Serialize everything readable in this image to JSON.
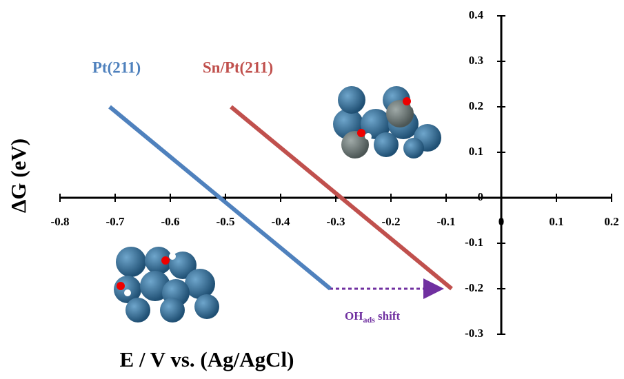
{
  "chart_data": {
    "type": "line",
    "xlabel": "E / V vs. (Ag/AgCl)",
    "ylabel": "ΔG (eV)",
    "xlim": [
      -0.8,
      0.2
    ],
    "ylim": [
      -0.3,
      0.4
    ],
    "xticks": [
      -0.8,
      -0.7,
      -0.6,
      -0.5,
      -0.4,
      -0.3,
      -0.2,
      -0.1,
      0,
      0.1,
      0.2
    ],
    "yticks": [
      -0.3,
      -0.2,
      -0.1,
      0,
      0.1,
      0.2,
      0.3,
      0.4
    ],
    "series": [
      {
        "name": "Pt(211)",
        "color": "#4f81bd",
        "x": [
          -0.71,
          -0.31
        ],
        "values": [
          0.2,
          -0.2
        ]
      },
      {
        "name": "Sn/Pt(211)",
        "color": "#c0504d",
        "x": [
          -0.49,
          -0.09
        ],
        "values": [
          0.2,
          -0.2
        ]
      }
    ],
    "annotation": {
      "main": "OH",
      "sub": "ads",
      "rest": " shift"
    }
  }
}
